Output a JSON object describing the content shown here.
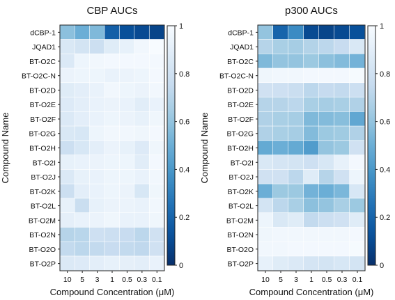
{
  "chart_data": [
    {
      "type": "heatmap",
      "title": "CBP AUCs",
      "xlabel": "Compound Concentration (μM)",
      "ylabel": "Compound Name",
      "x_categories": [
        "10",
        "5",
        "3",
        "1",
        "0.5",
        "0.3",
        "0.1"
      ],
      "y_categories": [
        "dCBP-1",
        "JQAD1",
        "BT-O2C",
        "BT-O2C-N",
        "BT-O2D",
        "BT-O2E",
        "BT-O2F",
        "BT-O2G",
        "BT-O2H",
        "BT-O2I",
        "BT-O2J",
        "BT-O2K",
        "BT-O2L",
        "BT-O2M",
        "BT-O2N",
        "BT-O2O",
        "BT-O2P"
      ],
      "values": [
        [
          0.58,
          0.5,
          0.55,
          0.18,
          0.12,
          0.1,
          0.08
        ],
        [
          0.85,
          0.82,
          0.78,
          0.88,
          0.92,
          0.97,
          1.0
        ],
        [
          0.86,
          0.95,
          0.97,
          0.98,
          0.98,
          0.98,
          0.98
        ],
        [
          0.94,
          0.95,
          0.95,
          0.93,
          0.94,
          0.95,
          0.98
        ],
        [
          0.88,
          0.9,
          0.93,
          0.97,
          0.95,
          0.94,
          0.97
        ],
        [
          0.87,
          0.9,
          0.93,
          0.94,
          0.93,
          0.89,
          0.93
        ],
        [
          0.86,
          0.9,
          0.93,
          0.95,
          0.94,
          0.92,
          0.96
        ],
        [
          0.85,
          0.84,
          0.95,
          0.97,
          0.97,
          0.96,
          0.98
        ],
        [
          0.78,
          0.84,
          0.9,
          0.94,
          0.92,
          0.87,
          0.96
        ],
        [
          0.92,
          0.93,
          0.94,
          0.95,
          0.95,
          0.89,
          0.98
        ],
        [
          0.86,
          0.92,
          0.93,
          0.95,
          0.95,
          0.93,
          0.97
        ],
        [
          0.78,
          0.9,
          0.93,
          0.95,
          0.94,
          0.84,
          0.96
        ],
        [
          0.92,
          0.77,
          0.92,
          0.94,
          0.94,
          0.93,
          0.97
        ],
        [
          0.91,
          0.93,
          0.94,
          0.96,
          0.93,
          0.93,
          0.96
        ],
        [
          0.7,
          0.71,
          0.79,
          0.78,
          0.76,
          0.72,
          0.8
        ],
        [
          0.74,
          0.72,
          0.74,
          0.76,
          0.74,
          0.73,
          0.8
        ],
        [
          0.86,
          0.87,
          0.9,
          0.92,
          0.91,
          0.9,
          0.93
        ]
      ],
      "colorbar": {
        "range": [
          0,
          1
        ],
        "ticks": [
          "0",
          "0.2",
          "0.4",
          "0.6",
          "0.8",
          "1"
        ]
      },
      "colormap": {
        "low": "#08306b",
        "high": "#f7fbff"
      }
    },
    {
      "type": "heatmap",
      "title": "p300 AUCs",
      "xlabel": "Compound Concentration (μM)",
      "ylabel": "Compound Name",
      "x_categories": [
        "10",
        "5",
        "3",
        "1",
        "0.5",
        "0.3",
        "0.1"
      ],
      "y_categories": [
        "dCBP-1",
        "JQAD1",
        "BT-O2C",
        "BT-O2C-N",
        "BT-O2D",
        "BT-O2E",
        "BT-O2F",
        "BT-O2G",
        "BT-O2H",
        "BT-O2I",
        "BT-O2J",
        "BT-O2K",
        "BT-O2L",
        "BT-O2M",
        "BT-O2N",
        "BT-O2O",
        "BT-O2P"
      ],
      "values": [
        [
          0.6,
          0.2,
          0.35,
          0.1,
          0.08,
          0.1,
          0.12
        ],
        [
          0.7,
          0.66,
          0.65,
          0.69,
          0.72,
          0.76,
          0.85
        ],
        [
          0.55,
          0.6,
          0.6,
          0.62,
          0.58,
          0.56,
          0.52
        ],
        [
          0.96,
          0.97,
          0.97,
          0.98,
          0.98,
          0.98,
          0.99
        ],
        [
          0.8,
          0.79,
          0.77,
          0.72,
          0.75,
          0.74,
          0.78
        ],
        [
          0.7,
          0.7,
          0.72,
          0.66,
          0.65,
          0.66,
          0.68
        ],
        [
          0.68,
          0.66,
          0.65,
          0.55,
          0.56,
          0.57,
          0.47
        ],
        [
          0.68,
          0.66,
          0.65,
          0.56,
          0.62,
          0.63,
          0.68
        ],
        [
          0.48,
          0.5,
          0.48,
          0.42,
          0.6,
          0.62,
          0.8
        ],
        [
          0.85,
          0.83,
          0.82,
          0.79,
          0.84,
          0.92,
          0.98
        ],
        [
          0.8,
          0.8,
          0.72,
          0.88,
          0.7,
          0.8,
          0.95
        ],
        [
          0.5,
          0.62,
          0.62,
          0.52,
          0.5,
          0.54,
          0.84
        ],
        [
          0.82,
          0.72,
          0.66,
          0.58,
          0.6,
          0.66,
          0.62
        ],
        [
          0.95,
          0.85,
          0.88,
          0.74,
          0.78,
          0.8,
          0.88
        ],
        [
          0.96,
          0.97,
          0.97,
          0.97,
          0.97,
          0.97,
          0.98
        ],
        [
          0.97,
          0.97,
          0.98,
          0.98,
          0.98,
          0.98,
          0.99
        ],
        [
          0.92,
          0.88,
          0.86,
          0.83,
          0.82,
          0.84,
          0.82
        ]
      ],
      "colorbar": {
        "range": [
          0,
          1
        ],
        "ticks": [
          "0",
          "0.2",
          "0.4",
          "0.6",
          "0.8",
          "1"
        ]
      },
      "colormap": {
        "low": "#08306b",
        "high": "#f7fbff"
      }
    }
  ]
}
